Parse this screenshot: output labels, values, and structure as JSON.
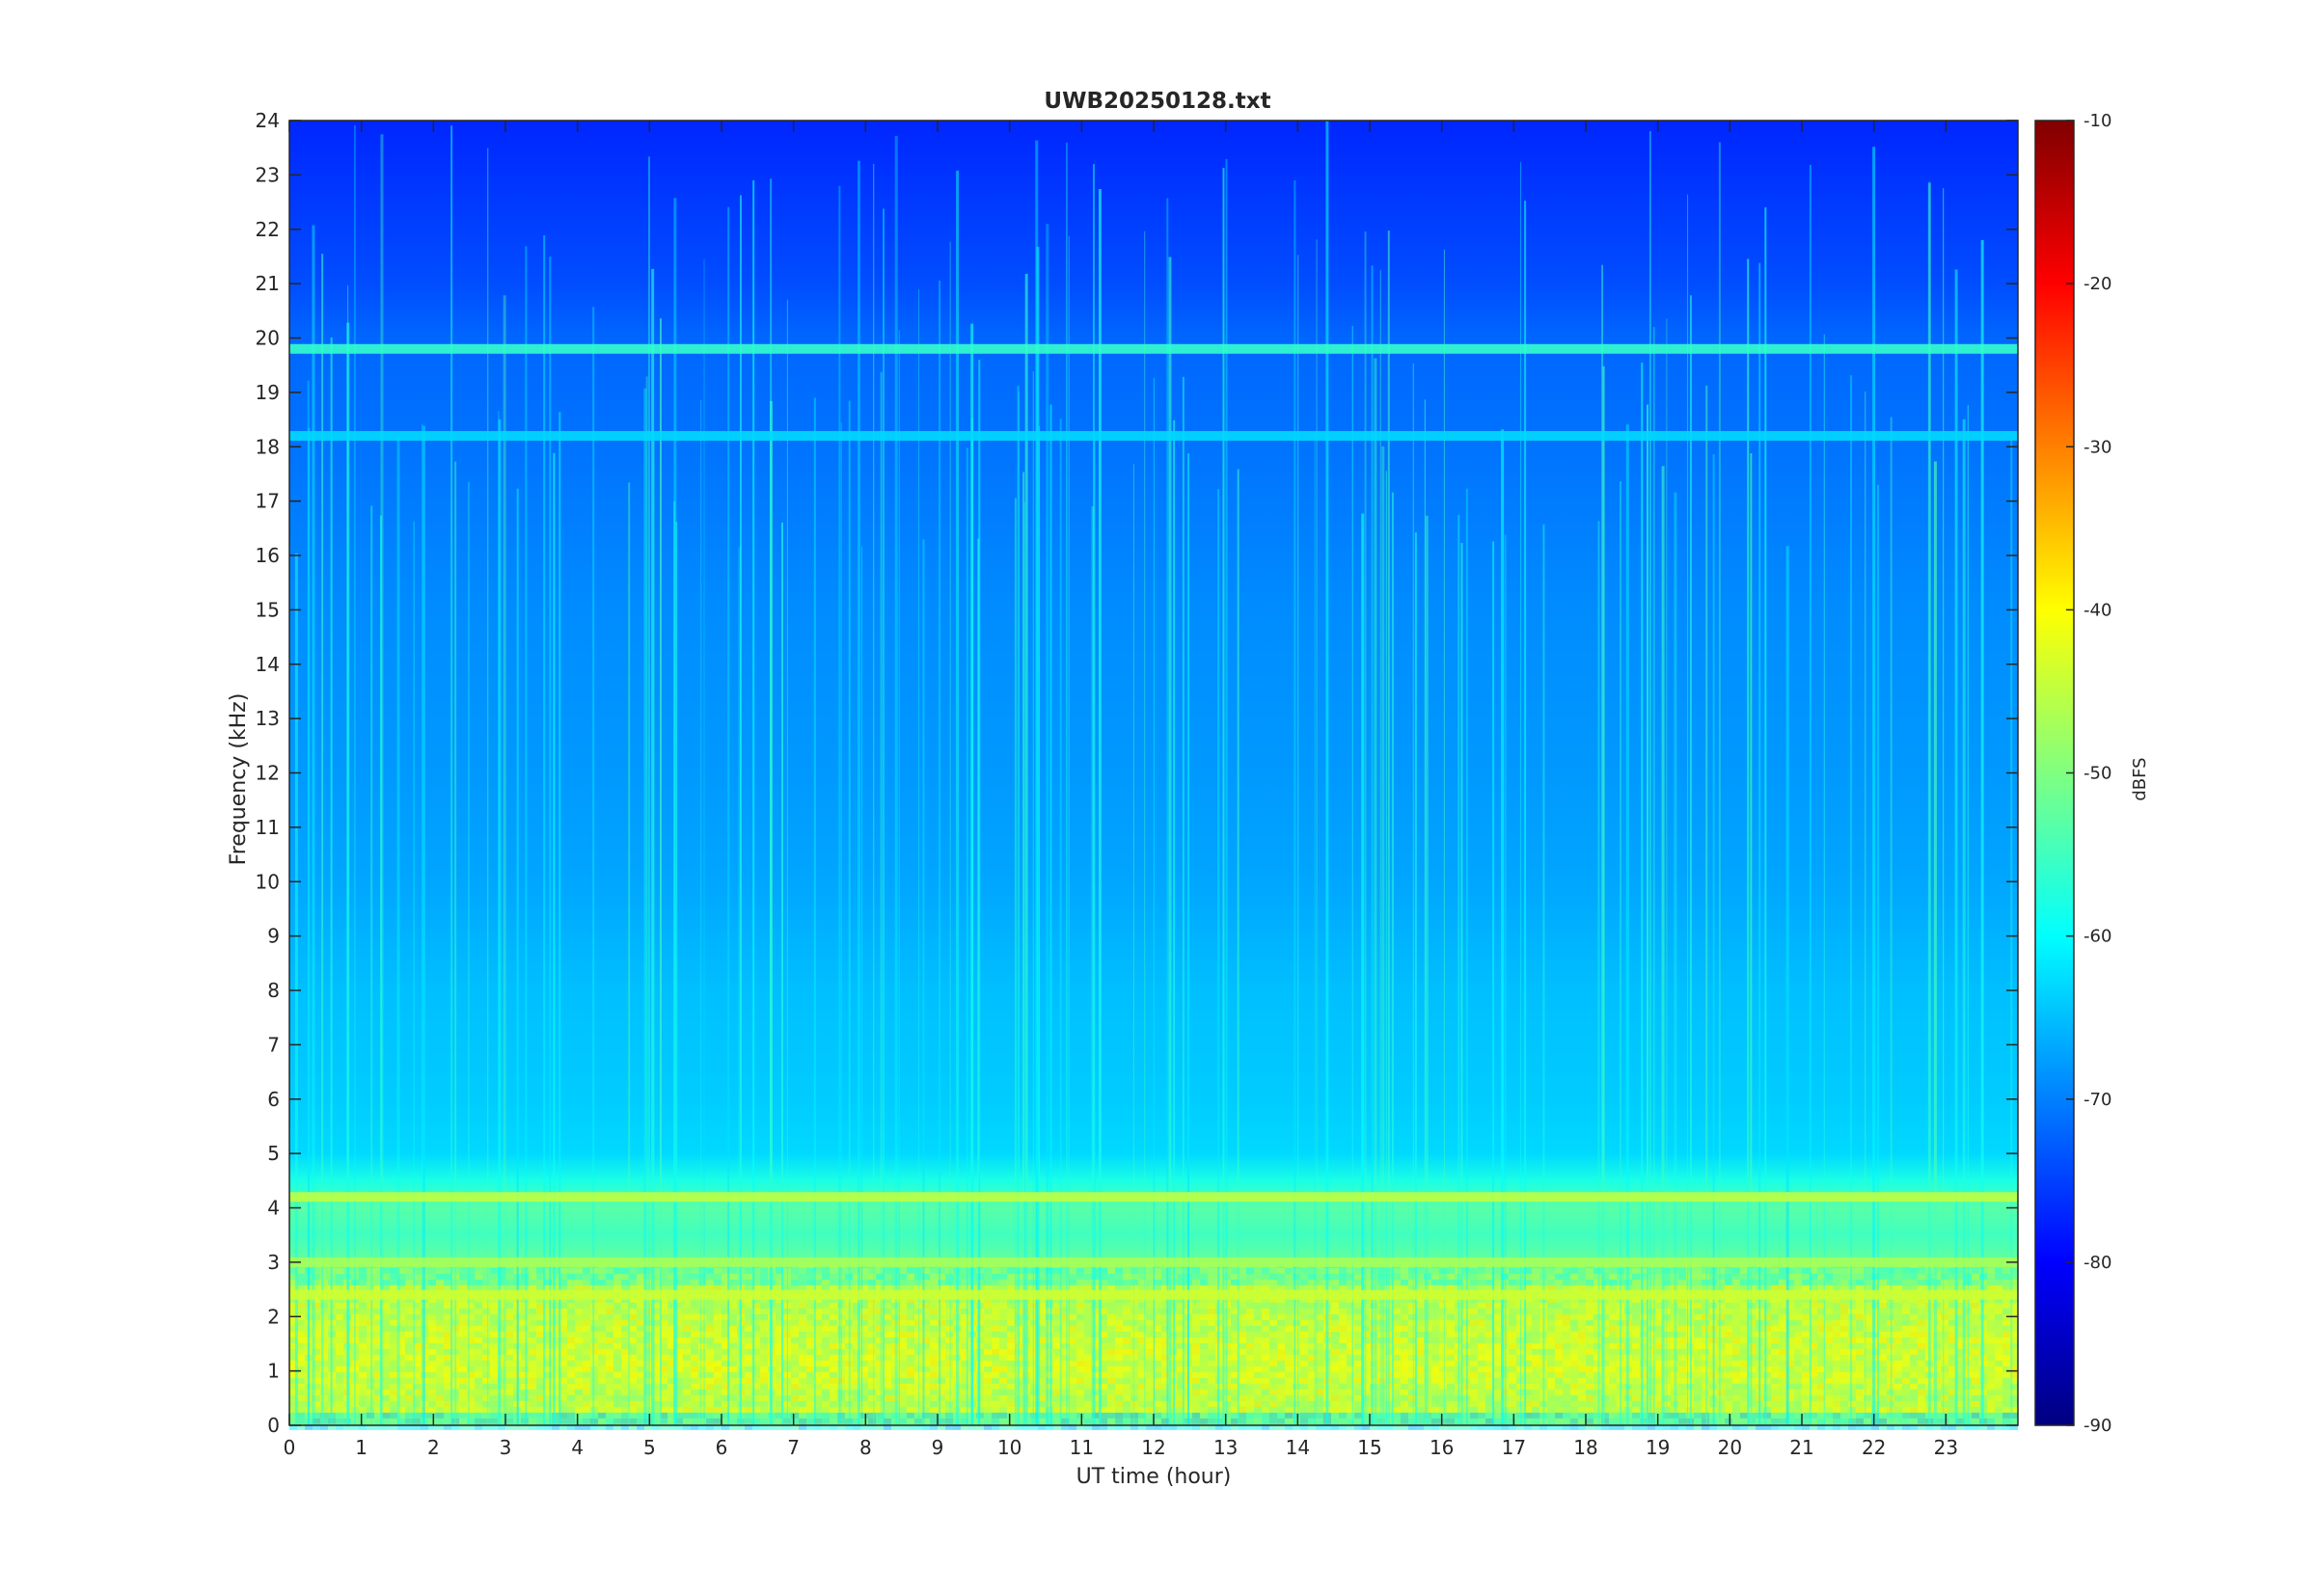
{
  "chart_data": {
    "type": "heatmap",
    "title": "UWB20250128.txt",
    "xlabel": "UT time (hour)",
    "ylabel": "Frequency (kHz)",
    "xlim": [
      0,
      24
    ],
    "ylim": [
      0,
      24
    ],
    "x_ticks": [
      0,
      1,
      2,
      3,
      4,
      5,
      6,
      7,
      8,
      9,
      10,
      11,
      12,
      13,
      14,
      15,
      16,
      17,
      18,
      19,
      20,
      21,
      22,
      23
    ],
    "y_ticks": [
      0,
      1,
      2,
      3,
      4,
      5,
      6,
      7,
      8,
      9,
      10,
      11,
      12,
      13,
      14,
      15,
      16,
      17,
      18,
      19,
      20,
      21,
      22,
      23,
      24
    ],
    "colorbar": {
      "label": "dBFS",
      "range": [
        -90,
        -10
      ],
      "ticks": [
        -10,
        -20,
        -30,
        -40,
        -50,
        -60,
        -70,
        -80,
        -90
      ],
      "colormap": "jet"
    },
    "grid": false,
    "spectral_lines_khz": [
      19.8,
      18.2,
      4.2,
      3.0,
      2.4
    ],
    "level_profile_db": {
      "frequency_khz": [
        0,
        0.5,
        1.0,
        1.5,
        2.0,
        2.5,
        3.0,
        3.5,
        4.0,
        4.5,
        5.0,
        6.0,
        8.0,
        10.0,
        12.0,
        15.0,
        18.0,
        20.0,
        21.0,
        22.0,
        23.0,
        24.0
      ],
      "level_dbfs": [
        -45,
        -47,
        -43,
        -44,
        -46,
        -48,
        -52,
        -55,
        -53,
        -58,
        -63,
        -64,
        -65,
        -67,
        -68,
        -69,
        -71,
        -72,
        -74,
        -75,
        -76,
        -77
      ]
    }
  }
}
